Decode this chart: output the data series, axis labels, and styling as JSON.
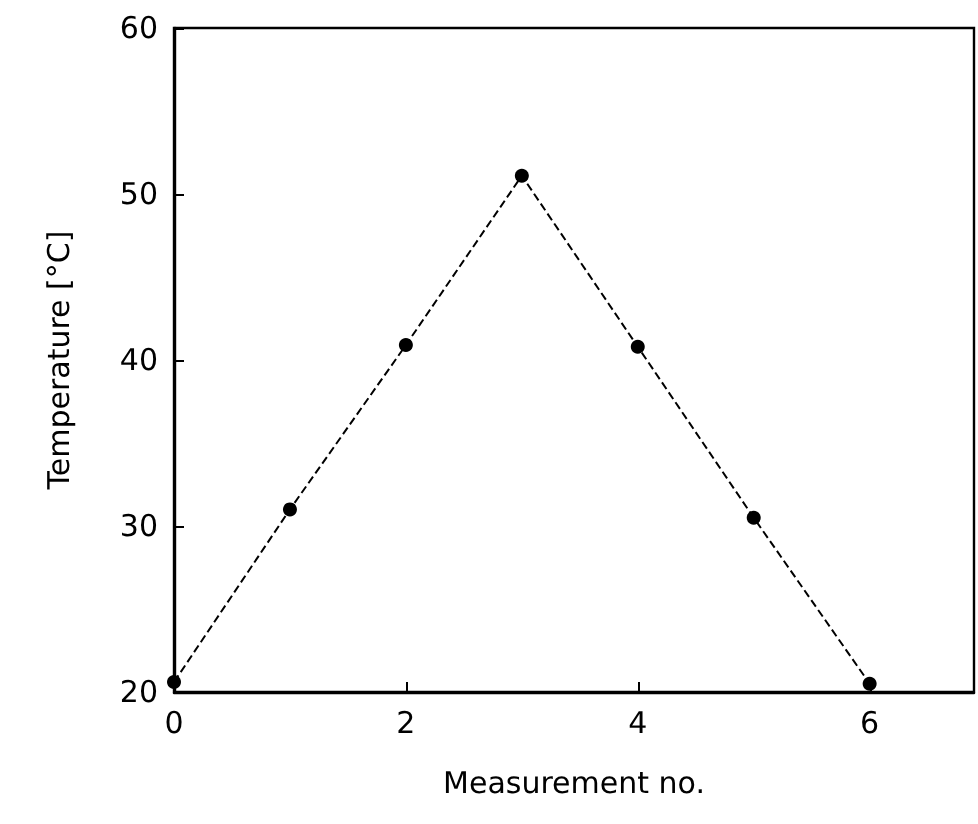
{
  "chart_data": {
    "type": "line",
    "xlabel": "Measurement no.",
    "ylabel": "Temperature [°C]",
    "x": [
      0,
      1,
      2,
      3,
      4,
      5,
      6
    ],
    "series": [
      {
        "color": "#000000",
        "values": [
          20.6,
          31,
          40.9,
          51.1,
          40.8,
          30.5,
          20.5
        ]
      }
    ],
    "xlim": [
      0,
      6.9
    ],
    "xticks": [
      0,
      2,
      4,
      6
    ],
    "ylim": [
      20,
      60
    ],
    "yticks": [
      20,
      30,
      40,
      50,
      60
    ],
    "grid": false,
    "marker": "circle",
    "line_style": "dashed"
  }
}
